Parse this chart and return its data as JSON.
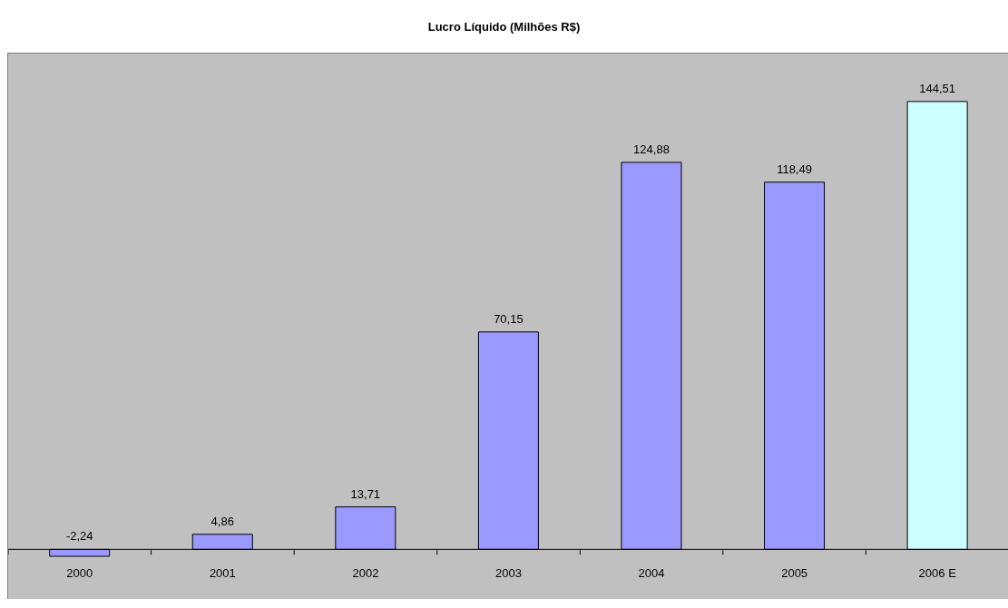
{
  "chart_data": {
    "type": "bar",
    "title": "Lucro Líquido (Milhões R$)",
    "categories": [
      "2000",
      "2001",
      "2002",
      "2003",
      "2004",
      "2005",
      "2006 E"
    ],
    "values": [
      -2.24,
      4.86,
      13.71,
      70.15,
      124.88,
      118.49,
      144.51
    ],
    "colors": [
      "#9999ff",
      "#9999ff",
      "#9999ff",
      "#9999ff",
      "#9999ff",
      "#9999ff",
      "#ccffff"
    ],
    "value_labels": [
      "-2,24",
      "4,86",
      "13,71",
      "70,15",
      "124,88",
      "118,49",
      "144,51"
    ],
    "ylim": [
      -16,
      160
    ],
    "tick_labels": "x",
    "grid": false
  }
}
